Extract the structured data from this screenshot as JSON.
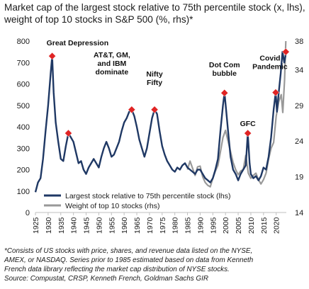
{
  "chart_data": {
    "type": "line",
    "title": "Market cap of the largest stock relative to 75th percentile stock (x, lhs), weight of top 10 stocks in S&P 500 (%, rhs)*",
    "x_ticks": [
      1925,
      1930,
      1935,
      1940,
      1945,
      1950,
      1955,
      1960,
      1965,
      1970,
      1975,
      1980,
      1985,
      1990,
      1995,
      2000,
      2005,
      2010,
      2015,
      2020
    ],
    "x_range": [
      1925,
      2024
    ],
    "y_left": {
      "range": [
        0,
        800
      ],
      "ticks": [
        0,
        100,
        200,
        300,
        400,
        500,
        600,
        700,
        800
      ]
    },
    "y_right": {
      "range": [
        14,
        38
      ],
      "ticks": [
        14,
        19,
        24,
        29,
        34,
        38
      ]
    },
    "grid": false,
    "legend_position": "bottom-left",
    "series": [
      {
        "name": "Largest stock relative to 75th percentile stock (lhs)",
        "axis": "left",
        "color": "#1f3864",
        "points": [
          [
            1925.0,
            95
          ],
          [
            1926.0,
            140
          ],
          [
            1927.0,
            160
          ],
          [
            1928.0,
            250
          ],
          [
            1929.0,
            380
          ],
          [
            1930.0,
            500
          ],
          [
            1931.0,
            650
          ],
          [
            1931.6,
            730
          ],
          [
            1932.2,
            560
          ],
          [
            1933.0,
            420
          ],
          [
            1934.0,
            330
          ],
          [
            1935.0,
            250
          ],
          [
            1936.0,
            240
          ],
          [
            1937.0,
            310
          ],
          [
            1938.0,
            370
          ],
          [
            1939.0,
            350
          ],
          [
            1940.0,
            330
          ],
          [
            1941.0,
            280
          ],
          [
            1942.0,
            230
          ],
          [
            1943.0,
            240
          ],
          [
            1944.0,
            200
          ],
          [
            1945.0,
            180
          ],
          [
            1946.0,
            210
          ],
          [
            1947.0,
            230
          ],
          [
            1948.0,
            250
          ],
          [
            1949.0,
            230
          ],
          [
            1950.0,
            210
          ],
          [
            1951.0,
            260
          ],
          [
            1952.0,
            300
          ],
          [
            1953.0,
            330
          ],
          [
            1954.0,
            300
          ],
          [
            1955.0,
            260
          ],
          [
            1956.0,
            270
          ],
          [
            1957.0,
            300
          ],
          [
            1958.0,
            330
          ],
          [
            1959.0,
            380
          ],
          [
            1960.0,
            420
          ],
          [
            1961.0,
            440
          ],
          [
            1962.0,
            470
          ],
          [
            1963.0,
            480
          ],
          [
            1964.0,
            450
          ],
          [
            1965.0,
            400
          ],
          [
            1966.0,
            340
          ],
          [
            1967.0,
            300
          ],
          [
            1968.0,
            260
          ],
          [
            1969.0,
            300
          ],
          [
            1970.0,
            370
          ],
          [
            1971.0,
            440
          ],
          [
            1972.0,
            480
          ],
          [
            1973.0,
            460
          ],
          [
            1974.0,
            380
          ],
          [
            1975.0,
            310
          ],
          [
            1976.0,
            270
          ],
          [
            1977.0,
            240
          ],
          [
            1978.0,
            220
          ],
          [
            1979.0,
            200
          ],
          [
            1980.0,
            190
          ],
          [
            1981.0,
            210
          ],
          [
            1982.0,
            200
          ],
          [
            1983.0,
            220
          ],
          [
            1984.0,
            230
          ],
          [
            1985.0,
            210
          ],
          [
            1986.0,
            200
          ],
          [
            1987.0,
            190
          ],
          [
            1988.0,
            180
          ],
          [
            1989.0,
            200
          ],
          [
            1990.0,
            200
          ],
          [
            1991.0,
            180
          ],
          [
            1992.0,
            160
          ],
          [
            1993.0,
            150
          ],
          [
            1994.0,
            140
          ],
          [
            1995.0,
            160
          ],
          [
            1996.0,
            200
          ],
          [
            1997.0,
            250
          ],
          [
            1998.0,
            380
          ],
          [
            1999.0,
            500
          ],
          [
            1999.6,
            558
          ],
          [
            2000.3,
            470
          ],
          [
            2001.0,
            380
          ],
          [
            2002.0,
            260
          ],
          [
            2003.0,
            200
          ],
          [
            2004.0,
            180
          ],
          [
            2005.0,
            150
          ],
          [
            2006.0,
            180
          ],
          [
            2007.0,
            200
          ],
          [
            2008.0,
            220
          ],
          [
            2008.8,
            370
          ],
          [
            2009.5,
            230
          ],
          [
            2010.0,
            180
          ],
          [
            2011.0,
            160
          ],
          [
            2012.0,
            170
          ],
          [
            2013.0,
            150
          ],
          [
            2014.0,
            170
          ],
          [
            2015.0,
            210
          ],
          [
            2016.0,
            200
          ],
          [
            2017.0,
            260
          ],
          [
            2018.0,
            350
          ],
          [
            2019.0,
            480
          ],
          [
            2019.8,
            560
          ],
          [
            2020.3,
            470
          ],
          [
            2021.0,
            560
          ],
          [
            2021.8,
            650
          ],
          [
            2022.5,
            750
          ],
          [
            2023.2,
            700
          ],
          [
            2023.8,
            740
          ]
        ]
      },
      {
        "name": "Weight of top 10 stocks (rhs)",
        "axis": "right",
        "color": "#999999",
        "points": [
          [
            1985.0,
            20.0
          ],
          [
            1986.0,
            21.2
          ],
          [
            1987.0,
            20.2
          ],
          [
            1988.0,
            19.2
          ],
          [
            1989.0,
            20.4
          ],
          [
            1990.0,
            20.5
          ],
          [
            1991.0,
            19.0
          ],
          [
            1992.0,
            18.2
          ],
          [
            1993.0,
            17.8
          ],
          [
            1994.0,
            17.6
          ],
          [
            1995.0,
            18.8
          ],
          [
            1996.0,
            19.8
          ],
          [
            1997.0,
            20.6
          ],
          [
            1998.0,
            22.5
          ],
          [
            1999.0,
            24.5
          ],
          [
            2000.0,
            25.5
          ],
          [
            2001.0,
            24.0
          ],
          [
            2002.0,
            22.5
          ],
          [
            2003.0,
            21.0
          ],
          [
            2004.0,
            20.0
          ],
          [
            2005.0,
            19.3
          ],
          [
            2006.0,
            19.8
          ],
          [
            2007.0,
            20.0
          ],
          [
            2008.0,
            22.0
          ],
          [
            2009.0,
            19.5
          ],
          [
            2010.0,
            18.8
          ],
          [
            2011.0,
            19.2
          ],
          [
            2012.0,
            19.5
          ],
          [
            2013.0,
            18.6
          ],
          [
            2014.0,
            18.0
          ],
          [
            2015.0,
            18.6
          ],
          [
            2016.0,
            19.5
          ],
          [
            2017.0,
            21.5
          ],
          [
            2018.0,
            23.0
          ],
          [
            2019.0,
            23.8
          ],
          [
            2020.0,
            27.5
          ],
          [
            2021.0,
            29.5
          ],
          [
            2022.0,
            30.5
          ],
          [
            2022.6,
            28.0
          ],
          [
            2023.3,
            32.5
          ],
          [
            2023.8,
            38.0
          ]
        ]
      }
    ],
    "annotations": [
      {
        "text": "Great Depression",
        "x": 1931.6,
        "y": 730,
        "lines": [
          "Great Depression"
        ]
      },
      {
        "text": "",
        "x": 1938.0,
        "y": 370,
        "lines": []
      },
      {
        "text": "AT&T, GM, and IBM dominate",
        "x": 1963.0,
        "y": 480,
        "lines": [
          "AT&T, GM,",
          "and IBM",
          "dominate"
        ]
      },
      {
        "text": "Nifty Fifty",
        "x": 1972.0,
        "y": 480,
        "lines": [
          "Nifty",
          "Fifty"
        ]
      },
      {
        "text": "Dot Com bubble",
        "x": 1999.6,
        "y": 558,
        "lines": [
          "Dot Com",
          "bubble"
        ]
      },
      {
        "text": "GFC",
        "x": 2008.8,
        "y": 370,
        "lines": [
          "GFC"
        ]
      },
      {
        "text": "Covid Pandemic",
        "x": 2019.8,
        "y": 560,
        "lines": [
          "Covid",
          "Pandemic"
        ]
      },
      {
        "text": "",
        "x": 2023.8,
        "y": 750,
        "lines": []
      }
    ],
    "marker_color": "#e02424"
  },
  "footnote": {
    "lines": [
      "*Consists of US stocks with price, shares, and revenue data listed on the NYSE,",
      "AMEX, or NASDAQ. Series prior to 1985 estimated based on data from Kenneth",
      "French data library reflecting the market cap distribution of NYSE stocks.",
      "Source: Compustat, CRSP, Kenneth French, Goldman Sachs GIR"
    ]
  }
}
